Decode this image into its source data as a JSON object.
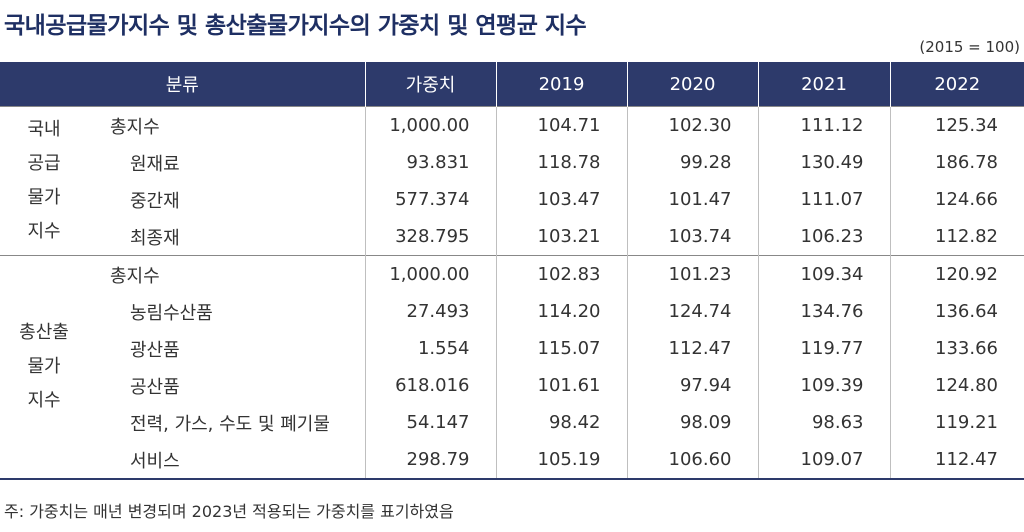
{
  "title": "국내공급물가지수 및 총산출물가지수의 가중치 및 연평균 지수",
  "unit": "(2015 = 100)",
  "headers": {
    "category": "분류",
    "weight": "가중치",
    "y2019": "2019",
    "y2020": "2020",
    "y2021": "2021",
    "y2022": "2022"
  },
  "groups": [
    {
      "name": "국내\n공급\n물가\n지수",
      "rows": [
        {
          "item": "총지수",
          "weight": "1,000.00",
          "y2019": "104.71",
          "y2020": "102.30",
          "y2021": "111.12",
          "y2022": "125.34"
        },
        {
          "item": "원재료",
          "weight": "93.831",
          "y2019": "118.78",
          "y2020": "99.28",
          "y2021": "130.49",
          "y2022": "186.78"
        },
        {
          "item": "중간재",
          "weight": "577.374",
          "y2019": "103.47",
          "y2020": "101.47",
          "y2021": "111.07",
          "y2022": "124.66"
        },
        {
          "item": "최종재",
          "weight": "328.795",
          "y2019": "103.21",
          "y2020": "103.74",
          "y2021": "106.23",
          "y2022": "112.82"
        }
      ]
    },
    {
      "name": "총산출\n물가\n지수",
      "rows": [
        {
          "item": "총지수",
          "weight": "1,000.00",
          "y2019": "102.83",
          "y2020": "101.23",
          "y2021": "109.34",
          "y2022": "120.92"
        },
        {
          "item": "농림수산품",
          "weight": "27.493",
          "y2019": "114.20",
          "y2020": "124.74",
          "y2021": "134.76",
          "y2022": "136.64"
        },
        {
          "item": "광산품",
          "weight": "1.554",
          "y2019": "115.07",
          "y2020": "112.47",
          "y2021": "119.77",
          "y2022": "133.66"
        },
        {
          "item": "공산품",
          "weight": "618.016",
          "y2019": "101.61",
          "y2020": "97.94",
          "y2021": "109.39",
          "y2022": "124.80"
        },
        {
          "item": "전력, 가스, 수도 및 폐기물",
          "weight": "54.147",
          "y2019": "98.42",
          "y2020": "98.09",
          "y2021": "98.63",
          "y2022": "119.21"
        },
        {
          "item": "서비스",
          "weight": "298.79",
          "y2019": "105.19",
          "y2020": "106.60",
          "y2021": "109.07",
          "y2022": "112.47"
        }
      ]
    }
  ],
  "note": "주: 가중치는 매년 변경되며 2023년 적용되는 가중치를 표기하였음"
}
